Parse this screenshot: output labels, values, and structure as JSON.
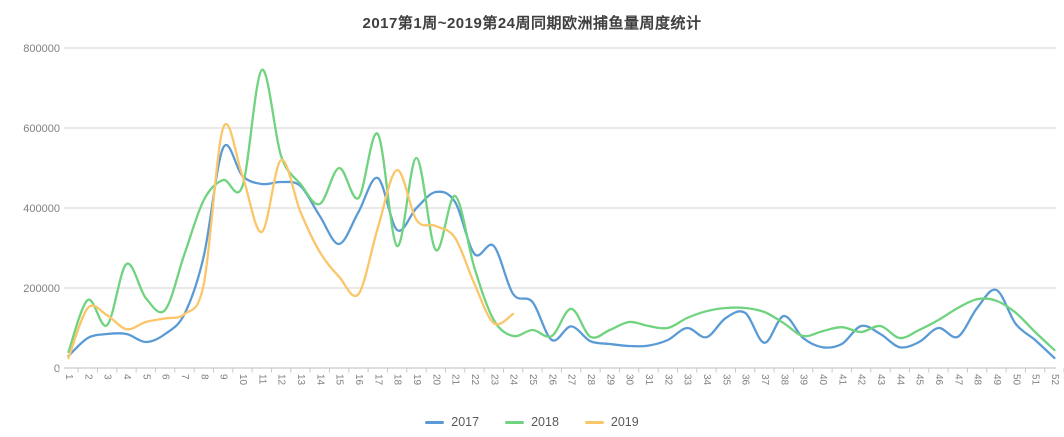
{
  "title": "2017第1周~2019第24周同期欧洲捕鱼量周度统计",
  "legend": {
    "position": "bottom",
    "items": [
      {
        "label": "2017",
        "color": "#5B9BD5"
      },
      {
        "label": "2018",
        "color": "#6FD37F"
      },
      {
        "label": "2019",
        "color": "#FAC669"
      }
    ]
  },
  "colors": {
    "title_text": "#3f3f3f",
    "axis_label_text": "#808080",
    "legend_text": "#595959",
    "gridline": "#DCDCDC",
    "axis_line": "#C9C9C9",
    "background": "#ffffff",
    "series_2017": "#5B9BD5",
    "series_2018": "#6FD37F",
    "series_2019": "#FAC669"
  },
  "chart_data": {
    "type": "line",
    "smooth": true,
    "title": "2017第1周~2019第24周同期欧洲捕鱼量周度统计",
    "xlabel": "",
    "ylabel": "",
    "grid": "horizontal",
    "legend_position": "bottom",
    "x_tick_label_rotation_deg": 90,
    "ylim": [
      0,
      800000
    ],
    "yticks": [
      0,
      200000,
      400000,
      600000,
      800000
    ],
    "categories": [
      1,
      2,
      3,
      4,
      5,
      6,
      7,
      8,
      9,
      10,
      11,
      12,
      13,
      14,
      15,
      16,
      17,
      18,
      19,
      20,
      21,
      22,
      23,
      24,
      25,
      26,
      27,
      28,
      29,
      30,
      31,
      32,
      33,
      34,
      35,
      36,
      37,
      38,
      39,
      40,
      41,
      42,
      43,
      44,
      45,
      46,
      47,
      48,
      49,
      50,
      51,
      52
    ],
    "series": [
      {
        "name": "2017",
        "color": "#5B9BD5",
        "values": [
          30000,
          75000,
          85000,
          85000,
          65000,
          85000,
          135000,
          280000,
          550000,
          480000,
          460000,
          465000,
          455000,
          380000,
          310000,
          390000,
          475000,
          345000,
          400000,
          440000,
          415000,
          285000,
          305000,
          185000,
          165000,
          70000,
          104000,
          67000,
          60000,
          55000,
          56000,
          70000,
          100000,
          77000,
          125000,
          138000,
          63000,
          130000,
          75000,
          52000,
          60000,
          105000,
          85000,
          52000,
          65000,
          100000,
          78000,
          150000,
          195000,
          110000,
          70000,
          25000
        ]
      },
      {
        "name": "2018",
        "color": "#6FD37F",
        "values": [
          40000,
          170000,
          107000,
          260000,
          175000,
          145000,
          285000,
          420000,
          470000,
          455000,
          745000,
          530000,
          460000,
          410000,
          500000,
          425000,
          585000,
          305000,
          525000,
          295000,
          430000,
          250000,
          120000,
          80000,
          95000,
          80000,
          148000,
          78000,
          95000,
          115000,
          105000,
          100000,
          125000,
          142000,
          150000,
          150000,
          140000,
          112000,
          80000,
          92000,
          102000,
          90000,
          105000,
          75000,
          95000,
          120000,
          150000,
          172000,
          168000,
          138000,
          90000,
          45000
        ]
      },
      {
        "name": "2019",
        "color": "#FAC669",
        "values": [
          25000,
          150000,
          132000,
          97000,
          115000,
          124000,
          135000,
          210000,
          600000,
          480000,
          340000,
          520000,
          390000,
          290000,
          228000,
          185000,
          350000,
          495000,
          370000,
          355000,
          325000,
          210000,
          112000,
          135000
        ]
      }
    ]
  }
}
